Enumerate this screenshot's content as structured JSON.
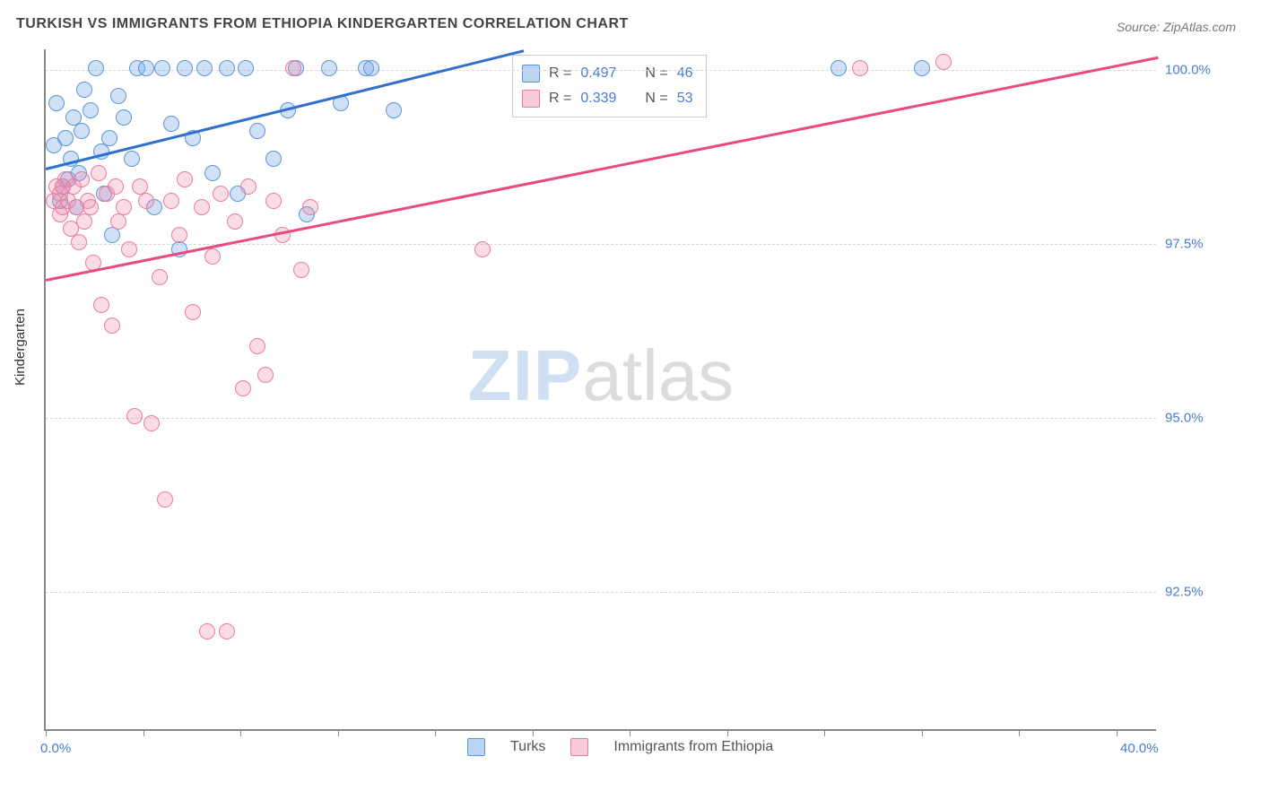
{
  "title": "TURKISH VS IMMIGRANTS FROM ETHIOPIA KINDERGARTEN CORRELATION CHART",
  "source": "Source: ZipAtlas.com",
  "ylabel": "Kindergarten",
  "watermark": {
    "zip": "ZIP",
    "atlas": "atlas"
  },
  "chart": {
    "type": "scatter",
    "background_color": "#ffffff",
    "grid_color": "#d6d6d6",
    "axis_color": "#888888",
    "label_color": "#4a7bd0",
    "title_color": "#444444",
    "title_fontsize": 16,
    "label_fontsize": 15,
    "marker_size": 18,
    "marker_opacity": 0.35,
    "trendline_width": 2.5,
    "xlim": [
      0,
      40
    ],
    "ylim": [
      90.5,
      100.3
    ],
    "xtick_positions": [
      0,
      3.5,
      7,
      10.5,
      14,
      17.5,
      21,
      24.5,
      28,
      31.5,
      35,
      38.5
    ],
    "xaxis_labels": [
      {
        "x": 0,
        "text": "0.0%"
      },
      {
        "x": 40,
        "text": "40.0%"
      }
    ],
    "ygrid": [
      {
        "y": 100.0,
        "label": "100.0%"
      },
      {
        "y": 97.5,
        "label": "97.5%"
      },
      {
        "y": 95.0,
        "label": "95.0%"
      },
      {
        "y": 92.5,
        "label": "92.5%"
      }
    ],
    "series": [
      {
        "name": "Turks",
        "fill_color": "rgba(120,170,230,0.35)",
        "stroke_color": "#5a97d8",
        "trend_color": "#2f6fd0",
        "r": 0.497,
        "n": 46,
        "trend": {
          "x1": 0,
          "y1": 98.6,
          "x2": 17.2,
          "y2": 100.3
        },
        "points": [
          [
            0.3,
            98.9
          ],
          [
            0.4,
            99.5
          ],
          [
            0.5,
            98.1
          ],
          [
            0.6,
            98.3
          ],
          [
            0.7,
            99.0
          ],
          [
            0.8,
            98.4
          ],
          [
            0.9,
            98.7
          ],
          [
            1.0,
            99.3
          ],
          [
            1.1,
            98.0
          ],
          [
            1.2,
            98.5
          ],
          [
            1.3,
            99.1
          ],
          [
            1.4,
            99.7
          ],
          [
            1.6,
            99.4
          ],
          [
            1.8,
            100.0
          ],
          [
            2.0,
            98.8
          ],
          [
            2.1,
            98.2
          ],
          [
            2.3,
            99.0
          ],
          [
            2.4,
            97.6
          ],
          [
            2.6,
            99.6
          ],
          [
            2.8,
            99.3
          ],
          [
            3.1,
            98.7
          ],
          [
            3.3,
            100.0
          ],
          [
            3.6,
            100.0
          ],
          [
            3.9,
            98.0
          ],
          [
            4.2,
            100.0
          ],
          [
            4.5,
            99.2
          ],
          [
            4.8,
            97.4
          ],
          [
            5.0,
            100.0
          ],
          [
            5.3,
            99.0
          ],
          [
            5.7,
            100.0
          ],
          [
            6.0,
            98.5
          ],
          [
            6.5,
            100.0
          ],
          [
            6.9,
            98.2
          ],
          [
            7.2,
            100.0
          ],
          [
            7.6,
            99.1
          ],
          [
            8.2,
            98.7
          ],
          [
            8.7,
            99.4
          ],
          [
            9.0,
            100.0
          ],
          [
            9.4,
            97.9
          ],
          [
            10.2,
            100.0
          ],
          [
            10.6,
            99.5
          ],
          [
            11.5,
            100.0
          ],
          [
            11.7,
            100.0
          ],
          [
            12.5,
            99.4
          ],
          [
            28.5,
            100.0
          ],
          [
            31.5,
            100.0
          ]
        ]
      },
      {
        "name": "Immigants from Ethiopia",
        "fill_color": "rgba(240,140,170,0.30)",
        "stroke_color": "#e97ba3",
        "trend_color": "#e94b7f",
        "r": 0.339,
        "n": 53,
        "trend": {
          "x1": 0,
          "y1": 97.0,
          "x2": 40.0,
          "y2": 100.2
        },
        "points": [
          [
            0.3,
            98.1
          ],
          [
            0.4,
            98.3
          ],
          [
            0.5,
            97.9
          ],
          [
            0.5,
            98.2
          ],
          [
            0.6,
            98.0
          ],
          [
            0.7,
            98.4
          ],
          [
            0.8,
            98.1
          ],
          [
            0.9,
            97.7
          ],
          [
            1.0,
            98.3
          ],
          [
            1.1,
            98.0
          ],
          [
            1.2,
            97.5
          ],
          [
            1.3,
            98.4
          ],
          [
            1.4,
            97.8
          ],
          [
            1.5,
            98.1
          ],
          [
            1.7,
            97.2
          ],
          [
            1.9,
            98.5
          ],
          [
            2.0,
            96.6
          ],
          [
            2.2,
            98.2
          ],
          [
            2.4,
            96.3
          ],
          [
            2.6,
            97.8
          ],
          [
            2.8,
            98.0
          ],
          [
            3.0,
            97.4
          ],
          [
            3.2,
            95.0
          ],
          [
            3.4,
            98.3
          ],
          [
            3.8,
            94.9
          ],
          [
            4.1,
            97.0
          ],
          [
            4.3,
            93.8
          ],
          [
            4.5,
            98.1
          ],
          [
            4.8,
            97.6
          ],
          [
            5.0,
            98.4
          ],
          [
            5.3,
            96.5
          ],
          [
            5.6,
            98.0
          ],
          [
            5.8,
            91.9
          ],
          [
            6.0,
            97.3
          ],
          [
            6.3,
            98.2
          ],
          [
            6.5,
            91.9
          ],
          [
            6.8,
            97.8
          ],
          [
            7.1,
            95.4
          ],
          [
            7.3,
            98.3
          ],
          [
            7.6,
            96.0
          ],
          [
            7.9,
            95.6
          ],
          [
            8.2,
            98.1
          ],
          [
            8.5,
            97.6
          ],
          [
            8.9,
            100.0
          ],
          [
            9.2,
            97.1
          ],
          [
            9.5,
            98.0
          ],
          [
            15.7,
            97.4
          ],
          [
            29.3,
            100.0
          ],
          [
            32.3,
            100.1
          ],
          [
            0.6,
            98.3
          ],
          [
            1.6,
            98.0
          ],
          [
            2.5,
            98.3
          ],
          [
            3.6,
            98.1
          ]
        ]
      }
    ]
  },
  "legend_box": {
    "rows": [
      {
        "swatch": "blue",
        "r_label": "R = ",
        "r": "0.497",
        "n_label": "N = ",
        "n": "46"
      },
      {
        "swatch": "pink",
        "r_label": "R = ",
        "r": "0.339",
        "n_label": "N = ",
        "n": "53"
      }
    ]
  },
  "bottom_legend": {
    "items": [
      {
        "swatch": "blue",
        "label": "Turks"
      },
      {
        "swatch": "pink",
        "label": "Immigrants from Ethiopia"
      }
    ]
  }
}
